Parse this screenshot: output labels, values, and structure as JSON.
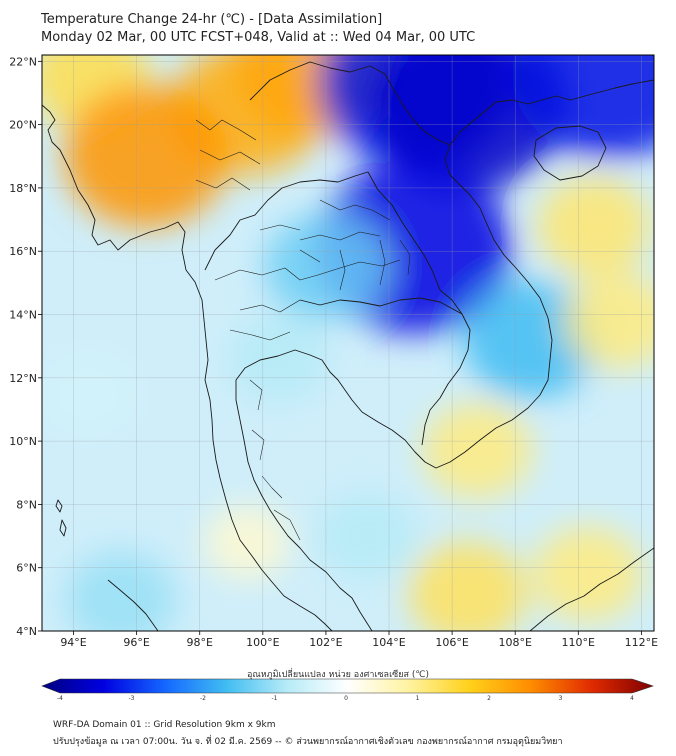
{
  "title_line1": "Temperature Change 24-hr (℃) - [Data Assimilation]",
  "title_line2": "Monday 02 Mar, 00 UTC FCST+048, Valid at :: Wed 04 Mar, 00 UTC",
  "map": {
    "lon_ticks": [
      "94°E",
      "96°E",
      "98°E",
      "100°E",
      "102°E",
      "104°E",
      "106°E",
      "108°E",
      "110°E",
      "112°E"
    ],
    "lat_ticks": [
      "22°N",
      "20°N",
      "18°N",
      "16°N",
      "14°N",
      "12°N",
      "10°N",
      "8°N",
      "6°N",
      "4°N"
    ],
    "lon_range": [
      93,
      112.4
    ],
    "lat_range": [
      4,
      22.2
    ],
    "field_samples": [
      {
        "lon": 94.5,
        "lat": 21.5,
        "v": 1.3
      },
      {
        "lon": 99.5,
        "lat": 20.5,
        "v": 2.0
      },
      {
        "lon": 96.3,
        "lat": 19.0,
        "v": 2.3
      },
      {
        "lon": 101.5,
        "lat": 21.7,
        "v": 2.1
      },
      {
        "lon": 104.8,
        "lat": 21.3,
        "v": -3.0
      },
      {
        "lon": 106.5,
        "lat": 20.6,
        "v": -3.4
      },
      {
        "lon": 111.0,
        "lat": 21.6,
        "v": -3.1
      },
      {
        "lon": 104.8,
        "lat": 16.1,
        "v": -3.2
      },
      {
        "lon": 102.0,
        "lat": 15.5,
        "v": -1.3
      },
      {
        "lon": 108.5,
        "lat": 13.2,
        "v": -1.6
      },
      {
        "lon": 110.5,
        "lat": 16.8,
        "v": 1.1
      },
      {
        "lon": 111.3,
        "lat": 13.8,
        "v": 1.0
      },
      {
        "lon": 106.8,
        "lat": 9.7,
        "v": 1.0
      },
      {
        "lon": 110.3,
        "lat": 5.8,
        "v": 1.0
      },
      {
        "lon": 106.5,
        "lat": 5.2,
        "v": 1.2
      },
      {
        "lon": 99.5,
        "lat": 6.8,
        "v": 0.4
      },
      {
        "lon": 94.5,
        "lat": 11.5,
        "v": -0.5
      },
      {
        "lon": 95.5,
        "lat": 5.0,
        "v": -1.0
      },
      {
        "lon": 100.5,
        "lat": 12.6,
        "v": -0.8
      },
      {
        "lon": 103.3,
        "lat": 7.0,
        "v": -0.8
      }
    ]
  },
  "colorbar": {
    "label": "อุณหภูมิเปลี่ยนแปลง หน่วย องศาเซลเซียส (℃)",
    "ticks": [
      "-4",
      "-3",
      "-2",
      "-1",
      "0",
      "1",
      "2",
      "3",
      "4"
    ],
    "range": [
      -4,
      4
    ],
    "stops": [
      "#00007f",
      "#0000e0",
      "#1466ff",
      "#3fbcf2",
      "#b5ebf7",
      "#ffffff",
      "#fff3a0",
      "#ffd11a",
      "#ff8c00",
      "#e02a00",
      "#7f0000"
    ]
  },
  "footer_line1": "WRF-DA Domain 01 :: Grid Resolution 9km x 9km",
  "footer_line2": "ปรับปรุงข้อมูล ณ เวลา 07:00น. วัน จ. ที่ 02 มี.ค. 2569 -- © ส่วนพยากรณ์อากาศเชิงตัวเลข กองพยากรณ์อากาศ กรมอุตุนิยมวิทยา"
}
